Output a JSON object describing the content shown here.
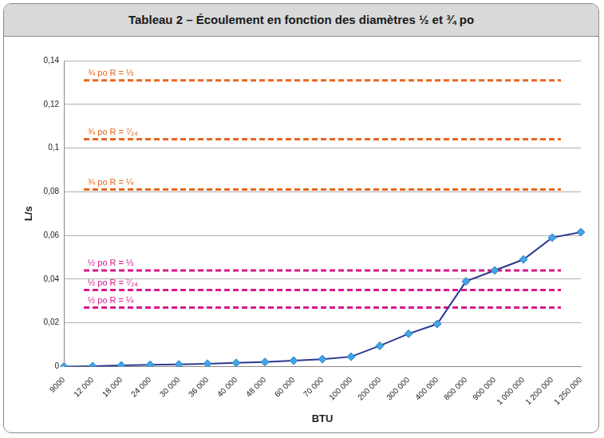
{
  "chart_data": {
    "type": "line",
    "title": "Tableau 2 – Écoulement en fonction des diamètres ½ et ¾ po",
    "x_label": "BTU",
    "y_label": "L/s",
    "categories": [
      "9000",
      "12 000",
      "18 000",
      "24 000",
      "30 000",
      "36 000",
      "40 000",
      "48 000",
      "60 000",
      "70 000",
      "100 000",
      "200 000",
      "300 000",
      "400 000",
      "800 000",
      "900 000",
      "1 000 000",
      "1 200 000",
      "1 250 000"
    ],
    "series": [
      {
        "color": "#2b3990",
        "marker": "diamond",
        "values": [
          0,
          0.0002,
          0.0005,
          0.0008,
          0.001,
          0.0013,
          0.0017,
          0.0021,
          0.0027,
          0.0034,
          0.0045,
          0.0095,
          0.015,
          0.0195,
          0.039,
          0.044,
          0.049,
          0.059,
          0.0615
        ]
      }
    ],
    "reference_lines": [
      {
        "label": "¾ po R = ⅓",
        "value": 0.131,
        "color": "#e8641e",
        "line_style": "dashed"
      },
      {
        "label": "¾ po R = ⁷⁄₂₄",
        "value": 0.104,
        "color": "#e8641e",
        "line_style": "dashed"
      },
      {
        "label": "¾ po R = ¼",
        "value": 0.081,
        "color": "#e8641e",
        "line_style": "dashed"
      },
      {
        "label": "½ po R = ⅓",
        "value": 0.044,
        "color": "#d6188c",
        "line_style": "dashed"
      },
      {
        "label": "½ po R = ⁷⁄₂₄",
        "value": 0.035,
        "color": "#d6188c",
        "line_style": "dashed"
      },
      {
        "label": "½ po R = ¼",
        "value": 0.027,
        "color": "#d6188c",
        "line_style": "dashed"
      }
    ],
    "ylim": [
      0,
      0.14
    ],
    "yticks": [
      0,
      {
        "value": 0.02,
        "label": "0,02"
      },
      {
        "value": 0.04,
        "label": "0,04"
      },
      {
        "value": 0.06,
        "label": "0,06"
      },
      {
        "value": 0.08,
        "label": "0,08"
      },
      {
        "value": 0.1,
        "label": "0,1"
      },
      {
        "value": 0.12,
        "label": "0,12"
      },
      {
        "value": 0.14,
        "label": "0,14"
      }
    ],
    "grid": true
  }
}
